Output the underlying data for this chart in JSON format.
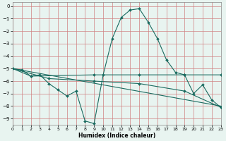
{
  "xlabel": "Humidex (Indice chaleur)",
  "bg_color": "#e8f4f0",
  "grid_color": "#d08080",
  "line_color": "#1a6b60",
  "xlim": [
    0,
    23
  ],
  "ylim": [
    -9.5,
    0.3
  ],
  "xticks": [
    0,
    1,
    2,
    3,
    4,
    5,
    6,
    7,
    8,
    9,
    10,
    11,
    12,
    13,
    14,
    15,
    16,
    17,
    18,
    19,
    20,
    21,
    22,
    23
  ],
  "yticks": [
    0,
    -1,
    -2,
    -3,
    -4,
    -5,
    -6,
    -7,
    -8,
    -9
  ],
  "line1_x": [
    0,
    1,
    2,
    3,
    4,
    5,
    6,
    7,
    8,
    9,
    10,
    11,
    12,
    13,
    14,
    15,
    16,
    17,
    18,
    19,
    20,
    21,
    22,
    23
  ],
  "line1_y": [
    -5.0,
    -5.1,
    -5.6,
    -5.5,
    -6.2,
    -6.7,
    -7.2,
    -6.8,
    -9.2,
    -9.4,
    -5.5,
    -2.6,
    -0.9,
    -0.3,
    -0.2,
    -1.3,
    -2.6,
    -4.3,
    -5.3,
    -5.5,
    -7.0,
    -6.3,
    -7.5,
    -8.1
  ],
  "line2_x": [
    0,
    2,
    9,
    14,
    19,
    23
  ],
  "line2_y": [
    -5.0,
    -5.6,
    -5.5,
    -5.5,
    -5.5,
    -5.5
  ],
  "line3_x": [
    0,
    23
  ],
  "line3_y": [
    -5.0,
    -8.0
  ],
  "line4_x": [
    0,
    4,
    9,
    14,
    19,
    23
  ],
  "line4_y": [
    -5.0,
    -5.8,
    -6.0,
    -6.2,
    -6.8,
    -8.1
  ],
  "xlabel_fontsize": 5.5,
  "tick_fontsize": 5.0,
  "linewidth": 0.8,
  "markersize": 2.0
}
